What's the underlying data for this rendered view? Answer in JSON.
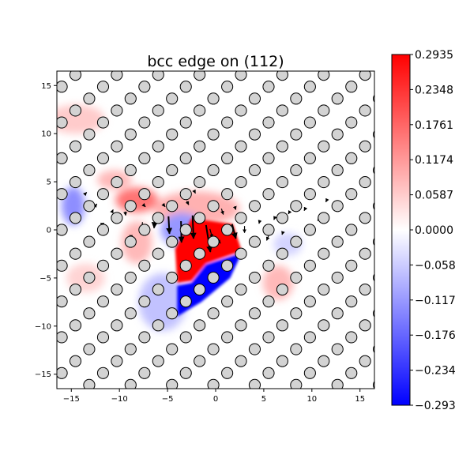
{
  "chart_data": {
    "type": "heatmap",
    "title": "bcc edge on (112)",
    "xlabel": "",
    "ylabel": "",
    "xlim": [
      -16.5,
      16.5
    ],
    "ylim": [
      -16.5,
      16.5
    ],
    "x_ticks": [
      -15,
      -10,
      -5,
      0,
      5,
      10,
      15
    ],
    "y_ticks": [
      -15,
      -10,
      -5,
      0,
      5,
      10,
      15
    ],
    "x_tick_labels": [
      "−15",
      "−10",
      "−5",
      "0",
      "5",
      "10",
      "15"
    ],
    "y_tick_labels": [
      "−15",
      "−10",
      "−5",
      "0",
      "5",
      "10",
      "15"
    ],
    "colormap": "bwr",
    "colorbar": {
      "range": [
        -0.2935,
        0.2935
      ],
      "ticks": [
        0.2935,
        0.2348,
        0.1761,
        0.1174,
        0.0587,
        0.0,
        -0.0587,
        -0.1174,
        -0.1761,
        -0.2348,
        -0.2935
      ],
      "tick_labels": [
        "0.2935",
        "0.2348",
        "0.1761",
        "0.1174",
        "0.0587",
        "0.0000",
        "−0.0587",
        "−0.1174",
        "−0.1761",
        "−0.2348",
        "−0.2935"
      ]
    },
    "colors": {
      "positive": "#ff0000",
      "zero": "#ffffff",
      "negative": "#0000ff",
      "atom_fill": "#d3d3d3",
      "atom_edge": "#000000"
    },
    "field_regions": [
      {
        "kind": "polygon",
        "value": 0.2935,
        "points": [
          [
            -4,
            -5.5
          ],
          [
            -4.2,
            -2
          ],
          [
            -2.5,
            1.2
          ],
          [
            1.8,
            0.6
          ],
          [
            2.7,
            -2.2
          ],
          [
            -1,
            -3.5
          ],
          [
            -2.5,
            -5.3
          ]
        ]
      },
      {
        "kind": "polygon",
        "value": -0.2935,
        "points": [
          [
            -4,
            -5.8
          ],
          [
            -2.5,
            -5.5
          ],
          [
            -1,
            -3.6
          ],
          [
            2.7,
            -2.4
          ],
          [
            1.5,
            -5
          ],
          [
            -1.5,
            -7.5
          ],
          [
            -4,
            -9
          ]
        ]
      },
      {
        "kind": "blob",
        "value": 0.16,
        "center": [
          -8.2,
          3.1
        ],
        "radius": [
          2.2,
          1.3
        ]
      },
      {
        "kind": "blob",
        "value": 0.08,
        "center": [
          -8.2,
          -1.3
        ],
        "radius": [
          1.6,
          2.2
        ]
      },
      {
        "kind": "blob",
        "value": 0.08,
        "center": [
          -10.5,
          5.2
        ],
        "radius": [
          1.8,
          1.0
        ]
      },
      {
        "kind": "blob",
        "value": 0.06,
        "center": [
          -14.5,
          11.5
        ],
        "radius": [
          3.0,
          1.5
        ]
      },
      {
        "kind": "blob",
        "value": 0.09,
        "center": [
          -2.0,
          2.2
        ],
        "radius": [
          4.5,
          1.8
        ]
      },
      {
        "kind": "blob",
        "value": -0.13,
        "center": [
          -14.8,
          2.5
        ],
        "radius": [
          1.2,
          2.0
        ]
      },
      {
        "kind": "blob",
        "value": -0.12,
        "center": [
          -3.5,
          0.0
        ],
        "radius": [
          2.2,
          1.8
        ]
      },
      {
        "kind": "blob",
        "value": -0.07,
        "center": [
          -5.5,
          -7.5
        ],
        "radius": [
          2.5,
          3.0
        ]
      },
      {
        "kind": "blob",
        "value": 0.08,
        "center": [
          6.5,
          -5.5
        ],
        "radius": [
          1.6,
          1.8
        ]
      },
      {
        "kind": "blob",
        "value": 0.05,
        "center": [
          -13.5,
          -5.0
        ],
        "radius": [
          2.0,
          1.5
        ]
      },
      {
        "kind": "blob",
        "value": -0.05,
        "center": [
          7.5,
          -1.5
        ],
        "radius": [
          1.5,
          1.2
        ]
      }
    ],
    "atom_lattice": {
      "row_spacing_y": 1.24,
      "col_spacing_x": 4.3,
      "row_offset_x": 1.43,
      "base_x": 1.2,
      "base_y": 0.0,
      "atom_radius": 0.58
    },
    "displacement_arrows": [
      {
        "x": -1.0,
        "y": 0.5,
        "dx": 0.45,
        "dy": -2.8
      },
      {
        "x": -2.4,
        "y": 1.5,
        "dx": 0.1,
        "dy": -2.4
      },
      {
        "x": -3.6,
        "y": 0.9,
        "dx": 0.05,
        "dy": -2.2
      },
      {
        "x": -4.9,
        "y": 1.4,
        "dx": 0.1,
        "dy": -1.8
      },
      {
        "x": 1.7,
        "y": 0.6,
        "dx": 0.4,
        "dy": -1.5
      },
      {
        "x": -6.3,
        "y": 1.2,
        "dx": -0.1,
        "dy": -1.0
      },
      {
        "x": -7.6,
        "y": 0.8,
        "dx": -0.1,
        "dy": -0.8
      },
      {
        "x": 3.0,
        "y": 0.4,
        "dx": 0.0,
        "dy": -0.7
      },
      {
        "x": 0.6,
        "y": 2.2,
        "dx": 0.2,
        "dy": -0.6
      },
      {
        "x": -0.6,
        "y": 0.1,
        "dx": 0.25,
        "dy": -0.9
      },
      {
        "x": -3.0,
        "y": 3.0,
        "dx": 0.2,
        "dy": -0.4
      },
      {
        "x": -5.5,
        "y": 2.7,
        "dx": 0.25,
        "dy": -0.3
      },
      {
        "x": -9.4,
        "y": 1.9,
        "dx": 0.05,
        "dy": -0.4
      },
      {
        "x": 4.6,
        "y": 1.0,
        "dx": -0.1,
        "dy": -0.35
      },
      {
        "x": 6.2,
        "y": 1.4,
        "dx": -0.15,
        "dy": -0.35
      },
      {
        "x": 5.5,
        "y": -0.6,
        "dx": -0.2,
        "dy": -0.5
      },
      {
        "x": 3.8,
        "y": -1.0,
        "dx": -0.25,
        "dy": -0.6
      },
      {
        "x": -10.8,
        "y": 1.8,
        "dx": 0.15,
        "dy": 0.3
      },
      {
        "x": -12.5,
        "y": 2.5,
        "dx": 0.15,
        "dy": 0.2
      },
      {
        "x": 7.7,
        "y": 1.9,
        "dx": -0.15,
        "dy": -0.25
      },
      {
        "x": 9.3,
        "y": 2.2,
        "dx": -0.1,
        "dy": -0.2
      },
      {
        "x": -7.5,
        "y": 2.6,
        "dx": 0.2,
        "dy": -0.2
      },
      {
        "x": 2.0,
        "y": 2.4,
        "dx": 0.1,
        "dy": -0.3
      },
      {
        "x": 4.0,
        "y": 2.8,
        "dx": 0.0,
        "dy": -0.2
      },
      {
        "x": -8.8,
        "y": -0.6,
        "dx": 0.0,
        "dy": -0.3
      },
      {
        "x": 7.0,
        "y": -0.2,
        "dx": -0.1,
        "dy": -0.3
      },
      {
        "x": 0.2,
        "y": -1.0,
        "dx": 0.3,
        "dy": -0.4
      },
      {
        "x": -11.8,
        "y": 0.6,
        "dx": 0.2,
        "dy": 0.1
      },
      {
        "x": 10.7,
        "y": 1.1,
        "dx": -0.1,
        "dy": -0.15
      },
      {
        "x": 11.5,
        "y": 3.0,
        "dx": -0.05,
        "dy": -0.1
      },
      {
        "x": -13.5,
        "y": 3.8,
        "dx": 0.1,
        "dy": 0.1
      },
      {
        "x": -2.2,
        "y": 4.0,
        "dx": 0.1,
        "dy": -0.2
      },
      {
        "x": 5.2,
        "y": 3.6,
        "dx": 0.0,
        "dy": -0.15
      }
    ]
  }
}
